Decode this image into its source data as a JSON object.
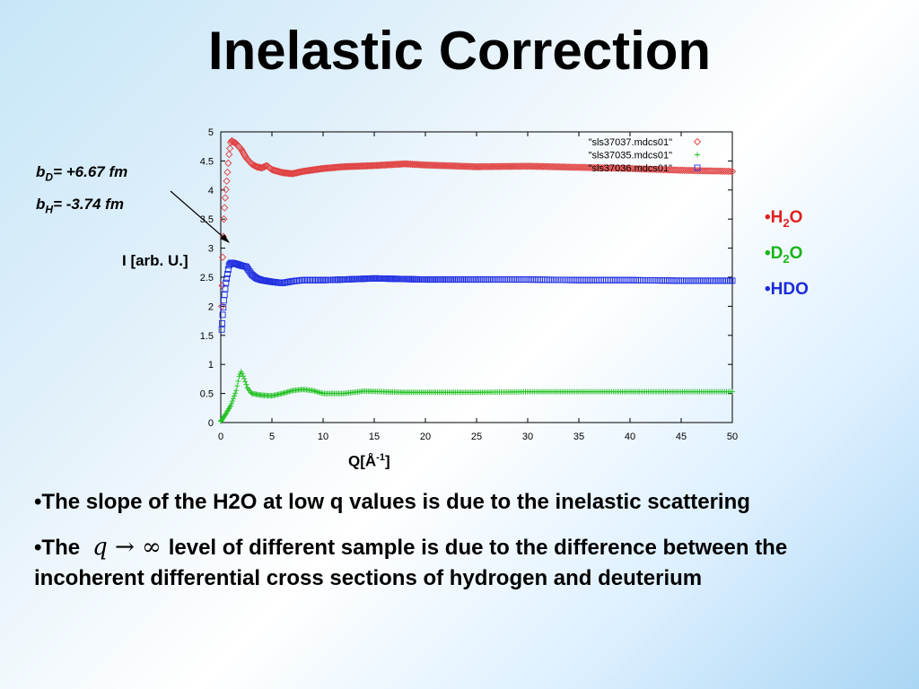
{
  "slide": {
    "title": "Inelastic Correction",
    "bd_sym": "b",
    "bd_sub": "D",
    "bd_val": "= +6.67 fm",
    "bh_sym": "b",
    "bh_sub": "H",
    "bh_val": "= -3.74 fm",
    "ylabel": "I [arb. U.]",
    "xlabel_main": "Q[Å",
    "xlabel_sup": "-1",
    "xlabel_end": "]",
    "side_labels": [
      {
        "prefix": "•H",
        "sub": "2",
        "suffix": "O",
        "color": "#e02020"
      },
      {
        "prefix": "•D",
        "sub": "2",
        "suffix": "O",
        "color": "#18b418"
      },
      {
        "prefix": "•HDO",
        "sub": "",
        "suffix": "",
        "color": "#1a2ad8"
      }
    ],
    "bullet1": "•The slope of the H2O at low q values is due to the inelastic scattering",
    "bullet2_pre": "•The",
    "bullet2_math": "q → ∞",
    "bullet2_post": "level of different sample is due to the difference between the incoherent differential cross sections of hydrogen and deuterium"
  },
  "chart_data": {
    "type": "scatter",
    "xlim": [
      0,
      50
    ],
    "ylim": [
      0,
      5
    ],
    "xticks": [
      "0",
      "5",
      "10",
      "15",
      "20",
      "25",
      "30",
      "35",
      "40",
      "45",
      "50"
    ],
    "yticks": [
      "0",
      "0.5",
      "1",
      "1.5",
      "2",
      "2.5",
      "3",
      "3.5",
      "4",
      "4.5",
      "5"
    ],
    "grid": false,
    "legend_position": "top-right",
    "series": [
      {
        "name": "\"sls37037.mdcs01\"",
        "marker": "diamond",
        "color": "#e04040",
        "points": [
          [
            0.1,
            2.0
          ],
          [
            0.2,
            3.0
          ],
          [
            0.3,
            3.5
          ],
          [
            0.4,
            3.8
          ],
          [
            0.5,
            4.0
          ],
          [
            0.6,
            4.2
          ],
          [
            0.8,
            4.6
          ],
          [
            1,
            4.85
          ],
          [
            1.5,
            4.8
          ],
          [
            2,
            4.7
          ],
          [
            2.5,
            4.55
          ],
          [
            3,
            4.45
          ],
          [
            3.5,
            4.4
          ],
          [
            4,
            4.38
          ],
          [
            4.5,
            4.42
          ],
          [
            5,
            4.35
          ],
          [
            6,
            4.3
          ],
          [
            7,
            4.28
          ],
          [
            8,
            4.32
          ],
          [
            10,
            4.37
          ],
          [
            12,
            4.4
          ],
          [
            15,
            4.42
          ],
          [
            18,
            4.45
          ],
          [
            20,
            4.43
          ],
          [
            25,
            4.4
          ],
          [
            30,
            4.41
          ],
          [
            35,
            4.39
          ],
          [
            40,
            4.37
          ],
          [
            45,
            4.34
          ],
          [
            50,
            4.32
          ]
        ]
      },
      {
        "name": "\"sls37035.mdcs01\"",
        "marker": "plus",
        "color": "#20c020",
        "points": [
          [
            0,
            0.02
          ],
          [
            0.5,
            0.15
          ],
          [
            1,
            0.3
          ],
          [
            1.5,
            0.55
          ],
          [
            1.8,
            0.8
          ],
          [
            2,
            0.88
          ],
          [
            2.3,
            0.75
          ],
          [
            2.6,
            0.6
          ],
          [
            3,
            0.5
          ],
          [
            4,
            0.47
          ],
          [
            5,
            0.46
          ],
          [
            6,
            0.5
          ],
          [
            7,
            0.55
          ],
          [
            8,
            0.57
          ],
          [
            9,
            0.55
          ],
          [
            10,
            0.5
          ],
          [
            12,
            0.5
          ],
          [
            14,
            0.54
          ],
          [
            16,
            0.53
          ],
          [
            18,
            0.52
          ],
          [
            20,
            0.52
          ],
          [
            25,
            0.52
          ],
          [
            30,
            0.53
          ],
          [
            35,
            0.53
          ],
          [
            40,
            0.53
          ],
          [
            45,
            0.53
          ],
          [
            50,
            0.53
          ]
        ]
      },
      {
        "name": "\"sls37036.mdcs01\"",
        "marker": "square",
        "color": "#2030e0",
        "points": [
          [
            0.1,
            1.6
          ],
          [
            0.2,
            1.9
          ],
          [
            0.3,
            2.1
          ],
          [
            0.5,
            2.4
          ],
          [
            0.8,
            2.7
          ],
          [
            1,
            2.75
          ],
          [
            1.5,
            2.73
          ],
          [
            2,
            2.7
          ],
          [
            2.5,
            2.68
          ],
          [
            3,
            2.55
          ],
          [
            3.5,
            2.48
          ],
          [
            4,
            2.45
          ],
          [
            5,
            2.42
          ],
          [
            6,
            2.4
          ],
          [
            7,
            2.43
          ],
          [
            8,
            2.45
          ],
          [
            10,
            2.45
          ],
          [
            12,
            2.46
          ],
          [
            15,
            2.48
          ],
          [
            20,
            2.46
          ],
          [
            25,
            2.46
          ],
          [
            30,
            2.46
          ],
          [
            35,
            2.45
          ],
          [
            40,
            2.45
          ],
          [
            45,
            2.44
          ],
          [
            50,
            2.44
          ]
        ]
      }
    ]
  }
}
